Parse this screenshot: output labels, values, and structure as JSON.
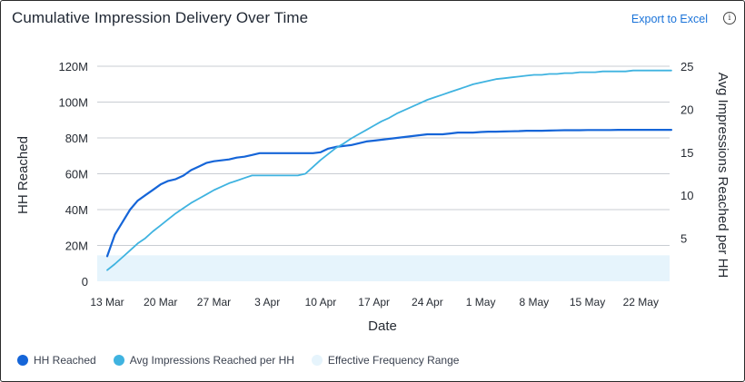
{
  "header": {
    "title": "Cumulative Impression Delivery Over Time",
    "export_label": "Export to Excel",
    "info_glyph": "i"
  },
  "chart_data": {
    "type": "line",
    "xlabel": "Date",
    "ylabel_left": "HH Reached",
    "ylabel_right": "Avg Impressions Reached per HH",
    "x_tick_labels": [
      "13 Mar",
      "20 Mar",
      "27 Mar",
      "3 Apr",
      "10 Apr",
      "17 Apr",
      "24 Apr",
      "1 May",
      "8 May",
      "15 May",
      "22 May"
    ],
    "y_left_ticks": [
      0,
      20,
      40,
      60,
      80,
      100,
      120
    ],
    "y_left_tick_labels": [
      "0",
      "20M",
      "40M",
      "60M",
      "80M",
      "100M",
      "120M"
    ],
    "y_right_ticks": [
      5,
      10,
      15,
      20,
      25
    ],
    "y_right_tick_labels": [
      "5",
      "10",
      "15",
      "20",
      "25"
    ],
    "ylim_left": [
      0,
      120
    ],
    "ylim_right": [
      0,
      25
    ],
    "grid": "horizontal",
    "x_dates": [
      "2024-03-13",
      "2024-03-14",
      "2024-03-15",
      "2024-03-16",
      "2024-03-17",
      "2024-03-18",
      "2024-03-19",
      "2024-03-20",
      "2024-03-21",
      "2024-03-22",
      "2024-03-23",
      "2024-03-24",
      "2024-03-25",
      "2024-03-26",
      "2024-03-27",
      "2024-03-28",
      "2024-03-29",
      "2024-03-30",
      "2024-03-31",
      "2024-04-01",
      "2024-04-02",
      "2024-04-03",
      "2024-04-04",
      "2024-04-05",
      "2024-04-06",
      "2024-04-07",
      "2024-04-08",
      "2024-04-09",
      "2024-04-10",
      "2024-04-11",
      "2024-04-12",
      "2024-04-13",
      "2024-04-14",
      "2024-04-15",
      "2024-04-16",
      "2024-04-17",
      "2024-04-18",
      "2024-04-19",
      "2024-04-20",
      "2024-04-21",
      "2024-04-22",
      "2024-04-23",
      "2024-04-24",
      "2024-04-25",
      "2024-04-26",
      "2024-04-27",
      "2024-04-28",
      "2024-04-29",
      "2024-04-30",
      "2024-05-01",
      "2024-05-02",
      "2024-05-03",
      "2024-05-04",
      "2024-05-05",
      "2024-05-06",
      "2024-05-07",
      "2024-05-08",
      "2024-05-09",
      "2024-05-10",
      "2024-05-11",
      "2024-05-12",
      "2024-05-13",
      "2024-05-14",
      "2024-05-15",
      "2024-05-16",
      "2024-05-17",
      "2024-05-18",
      "2024-05-19",
      "2024-05-20",
      "2024-05-21",
      "2024-05-22",
      "2024-05-23",
      "2024-05-24",
      "2024-05-25",
      "2024-05-26"
    ],
    "series": [
      {
        "name": "HH Reached",
        "axis": "left",
        "color": "#1565d8",
        "values": [
          14,
          26,
          33,
          40,
          45,
          48,
          51,
          54,
          56,
          57,
          59,
          62,
          64,
          66,
          67,
          67.5,
          68,
          69,
          69.5,
          70.5,
          71.5,
          71.5,
          71.5,
          71.5,
          71.5,
          71.5,
          71.5,
          71.5,
          72,
          74,
          75,
          75.5,
          76,
          77,
          78,
          78.5,
          79,
          79.5,
          80,
          80.5,
          81,
          81.5,
          82,
          82,
          82,
          82.5,
          83,
          83,
          83,
          83.3,
          83.5,
          83.5,
          83.6,
          83.7,
          83.8,
          84,
          84,
          84,
          84.1,
          84.2,
          84.3,
          84.3,
          84.3,
          84.4,
          84.4,
          84.4,
          84.4,
          84.5,
          84.5,
          84.5,
          84.5,
          84.5,
          84.5,
          84.5,
          84.5
        ]
      },
      {
        "name": "Avg Impressions Reached per HH",
        "axis": "right",
        "color": "#3fb3e0",
        "values": [
          1.3,
          2.0,
          2.8,
          3.6,
          4.4,
          5.0,
          5.8,
          6.5,
          7.2,
          7.9,
          8.5,
          9.1,
          9.6,
          10.1,
          10.6,
          11.0,
          11.4,
          11.7,
          12.0,
          12.3,
          12.3,
          12.3,
          12.3,
          12.3,
          12.3,
          12.3,
          12.5,
          13.3,
          14.1,
          14.8,
          15.5,
          16.0,
          16.6,
          17.1,
          17.6,
          18.1,
          18.6,
          19.0,
          19.5,
          19.9,
          20.3,
          20.7,
          21.1,
          21.4,
          21.7,
          22.0,
          22.3,
          22.6,
          22.9,
          23.1,
          23.3,
          23.5,
          23.6,
          23.7,
          23.8,
          23.9,
          24.0,
          24.0,
          24.1,
          24.1,
          24.2,
          24.2,
          24.3,
          24.3,
          24.3,
          24.4,
          24.4,
          24.4,
          24.4,
          24.5,
          24.5,
          24.5,
          24.5,
          24.5,
          24.5
        ]
      }
    ],
    "effective_frequency_range": {
      "name": "Effective Frequency Range",
      "axis_left_range": [
        0,
        14.5
      ],
      "color": "#e6f4fc"
    }
  },
  "legend": {
    "items": [
      {
        "label": "HH Reached",
        "color": "#1565d8"
      },
      {
        "label": "Avg Impressions Reached per HH",
        "color": "#3fb3e0"
      },
      {
        "label": "Effective Frequency Range",
        "color": "#e6f4fc"
      }
    ]
  }
}
